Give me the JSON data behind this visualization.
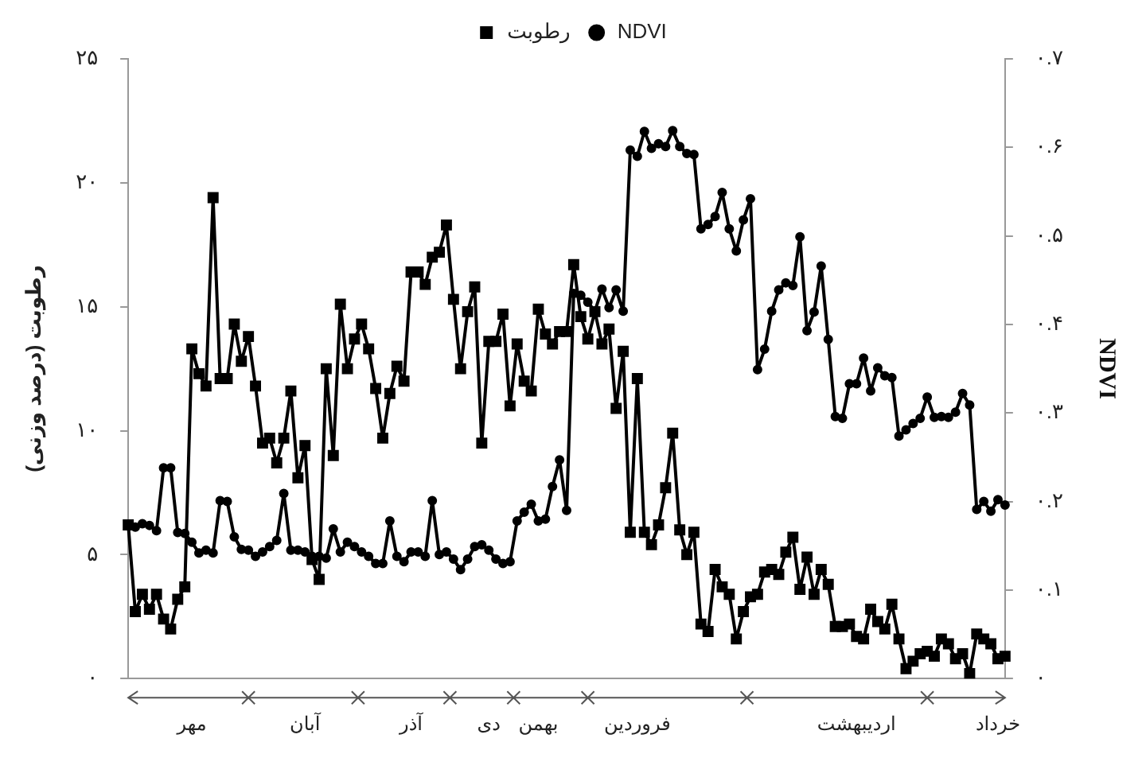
{
  "chart_data": {
    "type": "line",
    "ylabel": "رطوبت (درصد وزنی)",
    "y2label": "NDVI",
    "categories": [
      null,
      null,
      null,
      null,
      null,
      null,
      null,
      null,
      null,
      "مهر",
      null,
      null,
      null,
      null,
      null,
      null,
      null,
      null,
      null,
      null,
      null,
      null,
      null,
      null,
      null,
      "آبان",
      null,
      null,
      null,
      null,
      null,
      null,
      null,
      null,
      null,
      null,
      null,
      null,
      null,
      null,
      "آذر",
      null,
      null,
      null,
      null,
      null,
      null,
      null,
      null,
      null,
      null,
      "دی",
      null,
      null,
      null,
      null,
      null,
      null,
      "بهمن",
      null,
      null,
      null,
      null,
      null,
      null,
      null,
      null,
      null,
      null,
      null,
      null,
      null,
      "فروردین",
      null,
      null,
      null,
      null,
      null,
      null,
      null,
      null,
      null,
      null,
      null,
      null,
      null,
      null,
      null,
      null,
      null,
      null,
      null,
      null,
      null,
      null,
      null,
      null,
      null,
      null,
      null,
      null,
      null,
      null,
      "اردیبهشت",
      null,
      null,
      null,
      null,
      null,
      null,
      null,
      null,
      null,
      null,
      null,
      null,
      null,
      null,
      null,
      null,
      null,
      null,
      null,
      "خرداد",
      null
    ],
    "ylim": [
      0,
      25
    ],
    "yticks": [
      {
        "value": 0,
        "label": "۰"
      },
      {
        "value": 5,
        "label": "۵"
      },
      {
        "value": 10,
        "label": "۱۰"
      },
      {
        "value": 15,
        "label": "۱۵"
      },
      {
        "value": 20,
        "label": "۲۰"
      },
      {
        "value": 25,
        "label": "۲۵"
      }
    ],
    "y2lim": [
      0,
      0.7
    ],
    "y2ticks": [
      {
        "value": 0,
        "label": "۰"
      },
      {
        "value": 0.1,
        "label": "۰.۱"
      },
      {
        "value": 0.2,
        "label": "۰.۲"
      },
      {
        "value": 0.3,
        "label": "۰.۳"
      },
      {
        "value": 0.4,
        "label": "۰.۴"
      },
      {
        "value": 0.5,
        "label": "۰.۵"
      },
      {
        "value": 0.6,
        "label": "۰.۶"
      },
      {
        "value": 0.7,
        "label": "۰.۷"
      }
    ],
    "series": [
      {
        "name": "رطوبت",
        "color": "#000000",
        "marker": "square",
        "values": [
          6.2,
          2.7,
          3.4,
          2.8,
          3.4,
          2.4,
          2.0,
          3.2,
          3.7,
          13.3,
          12.3,
          11.8,
          19.4,
          12.1,
          12.1,
          14.3,
          12.8,
          13.8,
          11.8,
          9.5,
          9.7,
          8.7,
          9.7,
          11.6,
          8.1,
          9.4,
          4.8,
          4.0,
          12.5,
          9.0,
          15.1,
          12.5,
          13.7,
          14.3,
          13.3,
          11.7,
          9.7,
          11.5,
          12.6,
          12.0,
          16.4,
          16.4,
          15.9,
          17.0,
          17.2,
          18.3,
          15.3,
          12.5,
          14.8,
          15.8,
          9.5,
          13.6,
          13.6,
          14.7,
          11.0,
          13.5,
          12.0,
          11.6,
          14.9,
          13.9,
          13.5,
          14.0,
          14.0,
          16.7,
          14.6,
          13.7,
          14.8,
          13.5,
          14.1,
          10.9,
          13.2,
          5.9,
          12.1,
          5.9,
          5.4,
          6.2,
          7.7,
          9.9,
          6.0,
          5.0,
          5.9,
          2.2,
          1.9,
          4.4,
          3.7,
          3.4,
          1.6,
          2.7,
          3.3,
          3.4,
          4.3,
          4.4,
          4.2,
          5.1,
          5.7,
          3.6,
          4.9,
          3.4,
          4.4,
          3.8,
          2.1,
          2.1,
          2.2,
          1.7,
          1.6,
          2.8,
          2.3,
          2.0,
          3.0,
          1.6,
          0.4,
          0.7,
          1.0,
          1.1,
          0.9,
          1.6,
          1.4,
          0.8,
          1.0,
          0.2,
          1.8,
          1.6,
          1.4,
          0.8,
          0.9
        ]
      },
      {
        "name": "NDVI",
        "color": "#000000",
        "marker": "circle",
        "axis": "y2",
        "values": [
          0.173,
          0.171,
          0.175,
          0.173,
          0.167,
          0.238,
          0.238,
          0.165,
          0.164,
          0.154,
          0.142,
          0.145,
          0.142,
          0.201,
          0.2,
          0.16,
          0.146,
          0.145,
          0.138,
          0.143,
          0.149,
          0.156,
          0.209,
          0.145,
          0.145,
          0.143,
          0.138,
          0.138,
          0.136,
          0.169,
          0.143,
          0.154,
          0.149,
          0.143,
          0.138,
          0.13,
          0.13,
          0.178,
          0.138,
          0.132,
          0.143,
          0.143,
          0.138,
          0.201,
          0.14,
          0.143,
          0.135,
          0.123,
          0.135,
          0.149,
          0.151,
          0.145,
          0.135,
          0.13,
          0.132,
          0.178,
          0.188,
          0.197,
          0.178,
          0.18,
          0.217,
          0.247,
          0.19,
          0.435,
          0.433,
          0.425,
          0.415,
          0.44,
          0.419,
          0.439,
          0.415,
          0.597,
          0.59,
          0.618,
          0.599,
          0.604,
          0.601,
          0.619,
          0.601,
          0.593,
          0.592,
          0.508,
          0.513,
          0.522,
          0.549,
          0.508,
          0.483,
          0.518,
          0.542,
          0.349,
          0.372,
          0.415,
          0.439,
          0.447,
          0.444,
          0.499,
          0.393,
          0.414,
          0.466,
          0.383,
          0.296,
          0.294,
          0.333,
          0.333,
          0.362,
          0.325,
          0.351,
          0.342,
          0.34,
          0.274,
          0.281,
          0.288,
          0.294,
          0.318,
          0.295,
          0.296,
          0.295,
          0.301,
          0.322,
          0.309,
          0.191,
          0.2,
          0.189,
          0.202,
          0.196
        ]
      }
    ],
    "grid": false,
    "legend": "top"
  }
}
